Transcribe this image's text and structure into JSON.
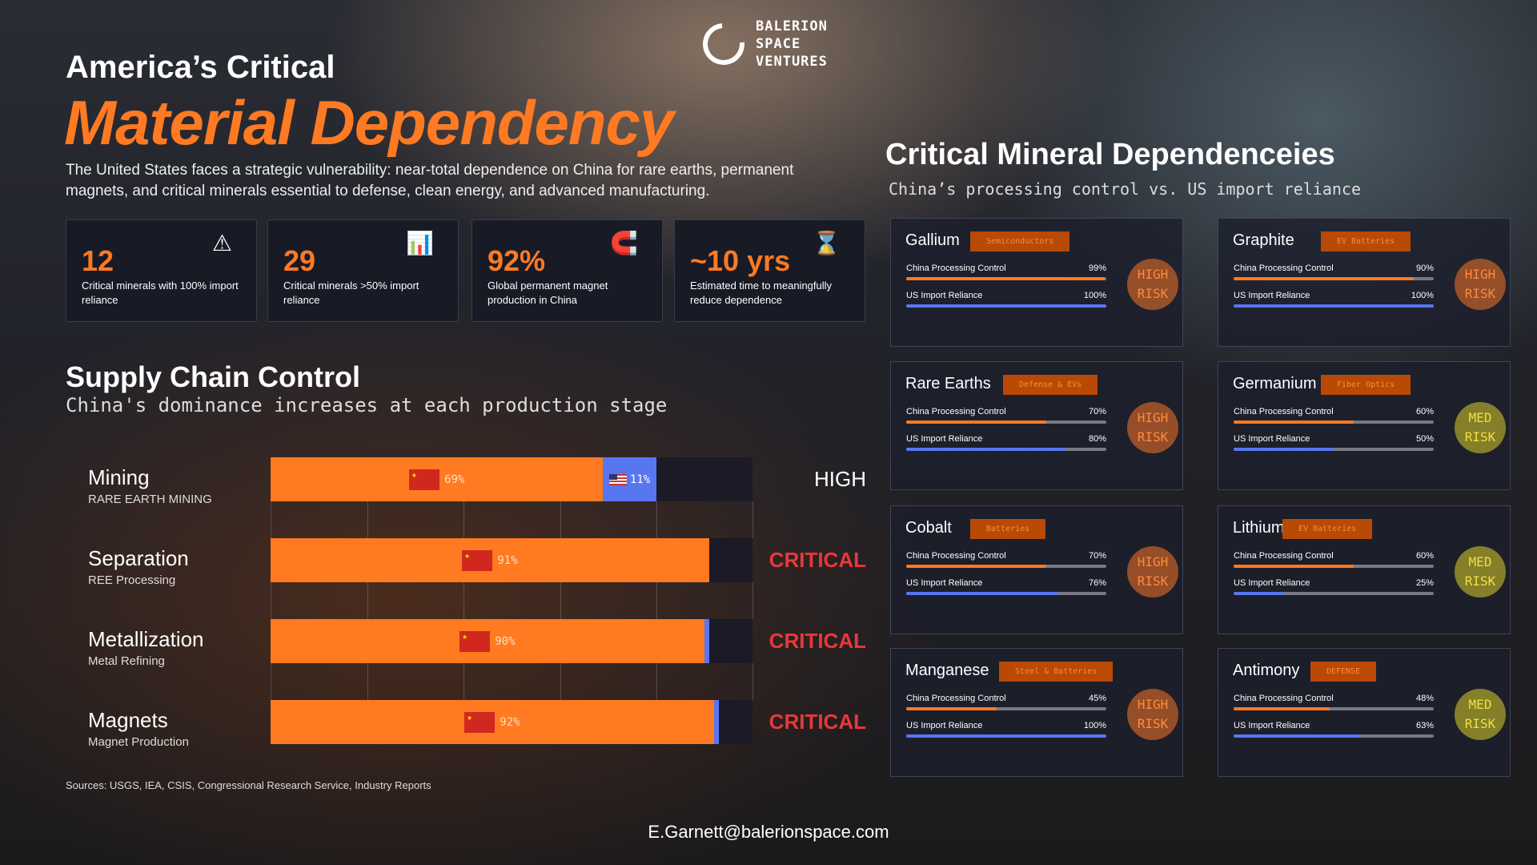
{
  "brand": {
    "name_lines": [
      "BALERION",
      "SPACE",
      "VENTURES"
    ]
  },
  "header": {
    "title_line1": "America’s Critical",
    "title_line2": "Material Dependency",
    "description": "The United States faces a strategic vulnerability: near-total dependence on China for rare earths, permanent magnets, and critical minerals essential to defense, clean energy, and advanced manufacturing."
  },
  "stats": [
    {
      "value": "12",
      "label": "Critical minerals with 100% import reliance",
      "icon": "warning-icon",
      "glyph": "⚠"
    },
    {
      "value": "29",
      "label": "Critical minerals >50% import reliance",
      "icon": "bar-chart-icon",
      "glyph": "📊"
    },
    {
      "value": "92%",
      "label": "Global permanent magnet production in China",
      "icon": "magnet-icon",
      "glyph": "🧲"
    },
    {
      "value": "~10 yrs",
      "label": "Estimated time to meaningfully reduce dependence",
      "icon": "hourglass-icon",
      "glyph": "⌛"
    }
  ],
  "supply_chain": {
    "title": "Supply Chain Control",
    "subtitle": "China's dominance increases at each production stage",
    "stages": [
      {
        "name": "Mining",
        "sub": "RARE EARTH MINING",
        "china": 69,
        "china_label": "69%",
        "us": 11,
        "us_label": "11%",
        "status": "HIGH",
        "status_color": "#ffffff"
      },
      {
        "name": "Separation",
        "sub": "REE Processing",
        "china": 91,
        "china_label": "91%",
        "us": 0,
        "status": "CRITICAL",
        "status_color": "#e8383a"
      },
      {
        "name": "Metallization",
        "sub": "Metal Refining",
        "china": 90,
        "china_label": "90%",
        "us": 1,
        "status": "CRITICAL",
        "status_color": "#e8383a"
      },
      {
        "name": "Magnets",
        "sub": "Magnet Production",
        "china": 92,
        "china_label": "92%",
        "us": 1,
        "status": "CRITICAL",
        "status_color": "#e8383a"
      }
    ]
  },
  "sources": "Sources: USGS, IEA, CSIS, Congressional Research Service, Industry Reports",
  "email": "E.Garnett@balerionspace.com",
  "minerals": {
    "title": "Critical Mineral Dependenceies",
    "subtitle": "China’s processing control vs. US import reliance",
    "labels": {
      "china": "China Processing Control",
      "us": "US Import Reliance"
    },
    "items": [
      {
        "name": "Gallium",
        "tag": "Semiconductors",
        "china": 99,
        "china_label": "99%",
        "us": 100,
        "us_label": "100%",
        "risk": [
          "HIGH",
          "RISK"
        ],
        "level": "high"
      },
      {
        "name": "Graphite",
        "tag": "EV Batteries",
        "china": 90,
        "china_label": "90%",
        "us": 100,
        "us_label": "100%",
        "risk": [
          "HIGH",
          "RISK"
        ],
        "level": "high"
      },
      {
        "name": "Rare Earths",
        "tag": "Defense & EVs",
        "china": 70,
        "china_label": "70%",
        "us": 80,
        "us_label": "80%",
        "risk": [
          "HIGH",
          "RISK"
        ],
        "level": "high"
      },
      {
        "name": "Germanium",
        "tag": "Fiber Optics",
        "china": 60,
        "china_label": "60%",
        "us": 50,
        "us_label": "50%",
        "risk": [
          "MED",
          "RISK"
        ],
        "level": "med"
      },
      {
        "name": "Cobalt",
        "tag": "Batteries",
        "china": 70,
        "china_label": "70%",
        "us": 76,
        "us_label": "76%",
        "risk": [
          "HIGH",
          "RISK"
        ],
        "level": "high"
      },
      {
        "name": "Lithium",
        "tag": "EV Batteries",
        "china": 60,
        "china_label": "60%",
        "us": 25,
        "us_label": "25%",
        "risk": [
          "MED",
          "RISK"
        ],
        "level": "med"
      },
      {
        "name": "Manganese",
        "tag": "Steel & Batteries",
        "china": 45,
        "china_label": "45%",
        "us": 100,
        "us_label": "100%",
        "risk": [
          "HIGH",
          "RISK"
        ],
        "level": "high"
      },
      {
        "name": "Antimony",
        "tag": "DEFENSE",
        "china": 48,
        "china_label": "48%",
        "us": 63,
        "us_label": "63%",
        "risk": [
          "MED",
          "RISK"
        ],
        "level": "med"
      }
    ]
  },
  "colors": {
    "accent": "#ff7a22",
    "china": "#ff7a20",
    "us": "#5876f0",
    "critical": "#e8383a"
  }
}
